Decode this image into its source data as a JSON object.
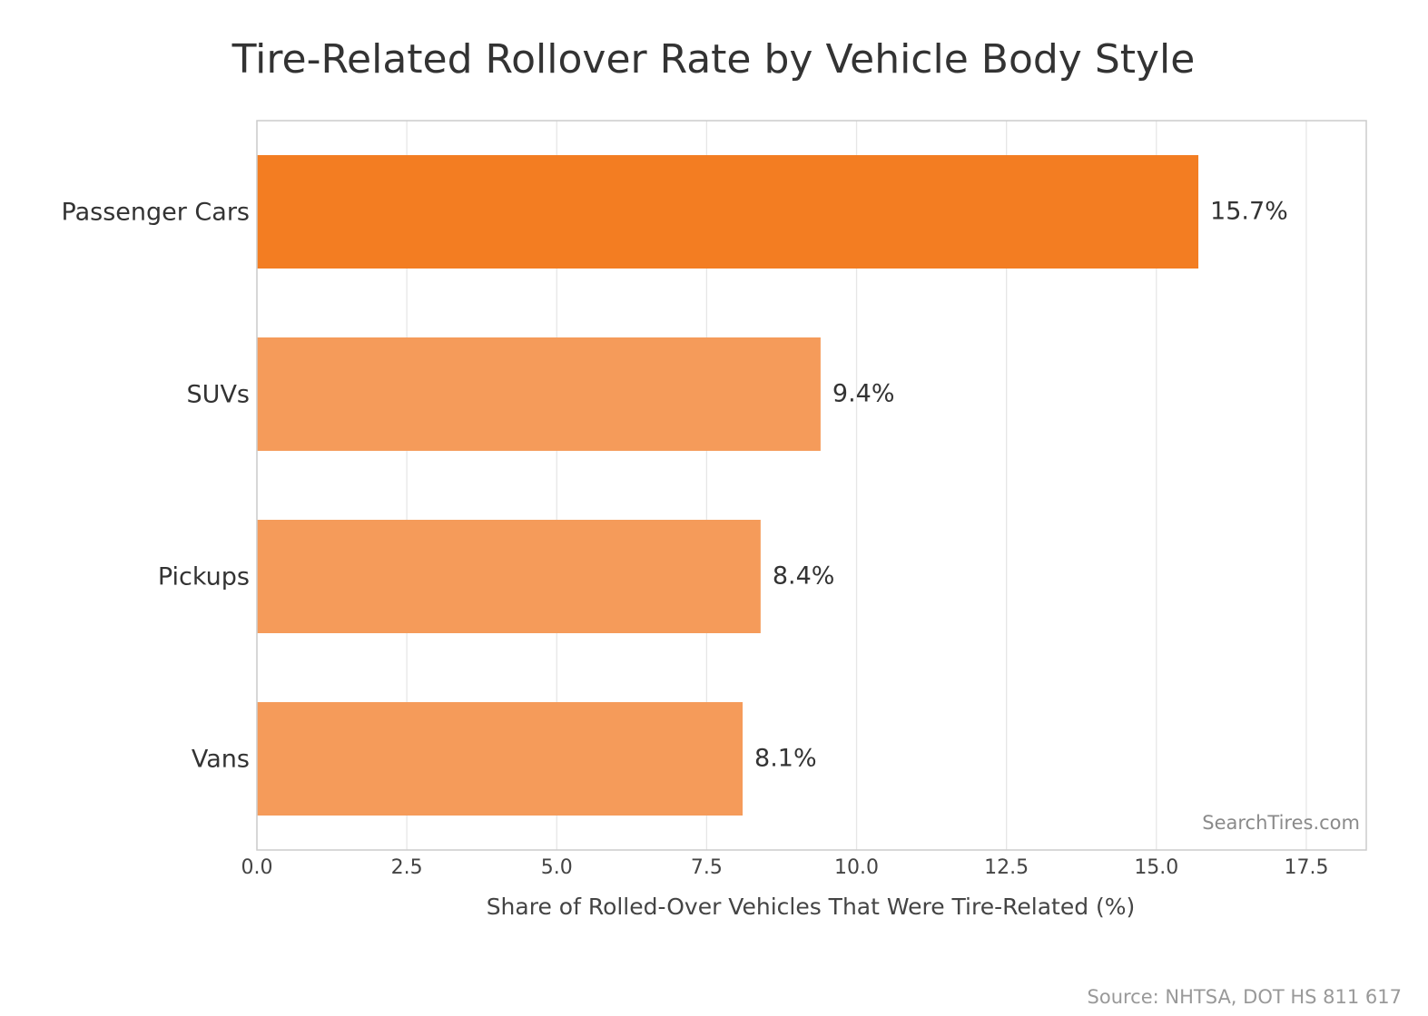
{
  "chart_data": {
    "type": "bar",
    "orientation": "horizontal",
    "title": "Tire-Related Rollover Rate by Vehicle Body Style",
    "xlabel": "Share of Rolled-Over Vehicles That Were Tire-Related (%)",
    "ylabel": "",
    "categories": [
      "Passenger Cars",
      "SUVs",
      "Pickups",
      "Vans"
    ],
    "values": [
      15.7,
      9.4,
      8.4,
      8.1
    ],
    "value_labels": [
      "15.7%",
      "9.4%",
      "8.4%",
      "8.1%"
    ],
    "xlim": [
      0,
      18.5
    ],
    "xticks": [
      0.0,
      2.5,
      5.0,
      7.5,
      10.0,
      12.5,
      15.0,
      17.5
    ],
    "xtick_labels": [
      "0.0",
      "2.5",
      "5.0",
      "7.5",
      "10.0",
      "12.5",
      "15.0",
      "17.5"
    ],
    "grid": "vertical",
    "colors": {
      "highlight": "#f37d22",
      "default": "#f59b5a",
      "grid": "#e6e6e6",
      "frame": "#cccccc"
    },
    "highlight_index": 0,
    "watermark": "SearchTires.com",
    "source": "Source: NHTSA, DOT HS 811 617"
  }
}
